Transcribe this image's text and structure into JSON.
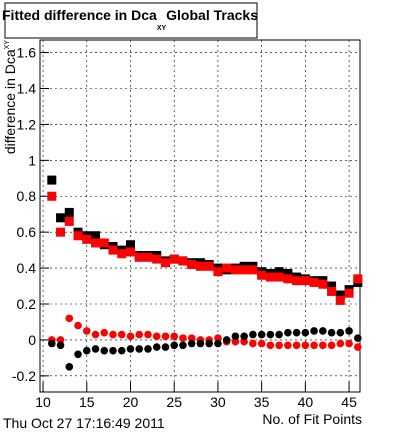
{
  "chart_data": {
    "type": "scatter",
    "title": "Fitted difference in Dca",
    "title_sub": "XY",
    "title_suffix": "Global Tracks",
    "y_label": "difference in Dca",
    "y_label_sub": "XY",
    "x_label": "No. of Fit Points",
    "timestamp": "Thu Oct 27 17:16:49 2011",
    "x": [
      11,
      12,
      13,
      14,
      15,
      16,
      17,
      18,
      19,
      20,
      21,
      22,
      23,
      24,
      25,
      26,
      27,
      28,
      29,
      30,
      31,
      32,
      33,
      34,
      35,
      36,
      37,
      38,
      39,
      40,
      41,
      42,
      43,
      44,
      45,
      46
    ],
    "xlim": [
      9.65,
      46.25
    ],
    "xticks": [
      10,
      15,
      20,
      25,
      30,
      35,
      40,
      45
    ],
    "ylim": [
      -0.29,
      1.67
    ],
    "yticks": [
      -0.2,
      0,
      0.2,
      0.4,
      0.6,
      0.8,
      1,
      1.2,
      1.4,
      1.6
    ],
    "grid": true,
    "series": [
      {
        "color": "#000000",
        "marker": "square",
        "values": [
          0.89,
          0.68,
          0.71,
          0.6,
          0.58,
          0.58,
          0.53,
          0.52,
          0.5,
          0.53,
          0.47,
          0.47,
          0.47,
          0.44,
          0.45,
          0.44,
          0.43,
          0.43,
          0.42,
          0.4,
          0.39,
          0.4,
          0.41,
          0.41,
          0.38,
          0.37,
          0.38,
          0.37,
          0.35,
          0.34,
          0.33,
          0.33,
          0.3,
          0.25,
          0.28,
          0.32
        ]
      },
      {
        "color": "#ff0000",
        "marker": "square",
        "values": [
          0.8,
          0.6,
          0.66,
          0.58,
          0.56,
          0.54,
          0.54,
          0.5,
          0.48,
          0.49,
          0.46,
          0.46,
          0.45,
          0.43,
          0.45,
          0.44,
          0.42,
          0.41,
          0.41,
          0.38,
          0.4,
          0.39,
          0.39,
          0.39,
          0.36,
          0.35,
          0.35,
          0.34,
          0.33,
          0.33,
          0.32,
          0.31,
          0.27,
          0.22,
          0.26,
          0.34
        ]
      },
      {
        "color": "#ff0000",
        "marker": "circle",
        "values": [
          0.0,
          0.0,
          0.12,
          0.08,
          0.05,
          0.03,
          0.04,
          0.03,
          0.03,
          0.02,
          0.03,
          0.03,
          0.02,
          0.02,
          0.02,
          0.01,
          0.01,
          0.0,
          0.0,
          0.01,
          -0.01,
          -0.01,
          -0.01,
          -0.02,
          -0.02,
          -0.03,
          -0.03,
          -0.03,
          -0.03,
          -0.03,
          -0.03,
          -0.03,
          -0.03,
          -0.02,
          -0.02,
          -0.04
        ]
      },
      {
        "color": "#000000",
        "marker": "circle",
        "values": [
          -0.02,
          -0.03,
          -0.15,
          -0.08,
          -0.06,
          -0.05,
          -0.06,
          -0.06,
          -0.06,
          -0.05,
          -0.05,
          -0.05,
          -0.04,
          -0.04,
          -0.03,
          -0.03,
          -0.02,
          -0.02,
          -0.02,
          -0.02,
          0.0,
          0.02,
          0.02,
          0.03,
          0.03,
          0.03,
          0.03,
          0.04,
          0.04,
          0.04,
          0.05,
          0.05,
          0.04,
          0.04,
          0.05,
          0.01
        ]
      }
    ]
  }
}
